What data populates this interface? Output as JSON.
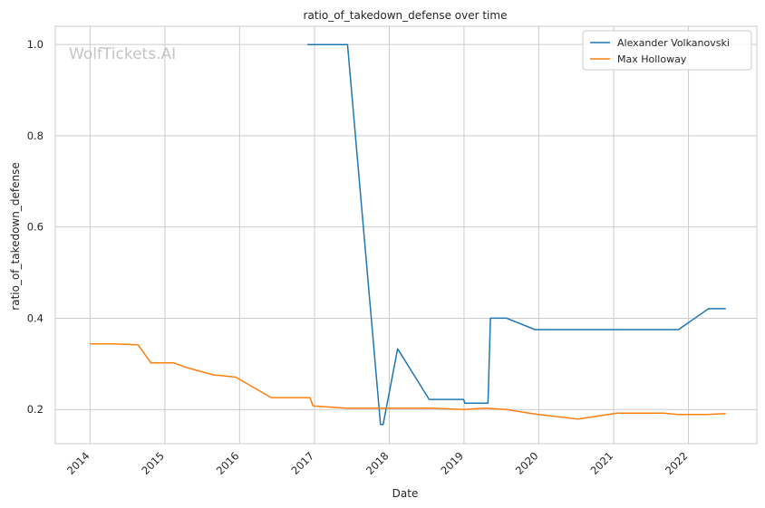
{
  "chart_data": {
    "type": "line",
    "title": "ratio_of_takedown_defense over time",
    "xlabel": "Date",
    "ylabel": "ratio_of_takedown_defense",
    "watermark": "WolfTickets.AI",
    "xlim": [
      "2013-07-15",
      "2022-12-01"
    ],
    "ylim": [
      0.125,
      1.04
    ],
    "grid": true,
    "legend_position": "top-right",
    "x_ticks": [
      "2014",
      "2015",
      "2016",
      "2017",
      "2018",
      "2019",
      "2020",
      "2021",
      "2022"
    ],
    "y_ticks": [
      "0.2",
      "0.4",
      "0.6",
      "0.8",
      "1.0"
    ],
    "series": [
      {
        "name": "Alexander Volkanovski",
        "color": "#1f77b4",
        "points": [
          [
            "2016-11-27",
            1.0
          ],
          [
            "2017-06-11",
            1.0
          ],
          [
            "2017-11-19",
            0.167
          ],
          [
            "2017-12-02",
            0.167
          ],
          [
            "2018-02-11",
            0.333
          ],
          [
            "2018-07-15",
            0.222
          ],
          [
            "2018-12-30",
            0.222
          ],
          [
            "2019-01-05",
            0.214
          ],
          [
            "2019-04-28",
            0.214
          ],
          [
            "2019-05-10",
            0.4
          ],
          [
            "2019-07-28",
            0.4
          ],
          [
            "2019-12-14",
            0.375
          ],
          [
            "2020-07-12",
            0.375
          ],
          [
            "2021-09-25",
            0.375
          ],
          [
            "2021-11-13",
            0.375
          ],
          [
            "2022-04-09",
            0.421
          ],
          [
            "2022-07-02",
            0.421
          ]
        ]
      },
      {
        "name": "Max Holloway",
        "color": "#ff7f0e",
        "points": [
          [
            "2014-01-01",
            0.344
          ],
          [
            "2014-04-16",
            0.344
          ],
          [
            "2014-08-23",
            0.342
          ],
          [
            "2014-10-25",
            0.302
          ],
          [
            "2015-02-14",
            0.302
          ],
          [
            "2015-04-18",
            0.292
          ],
          [
            "2015-08-23",
            0.276
          ],
          [
            "2015-12-12",
            0.271
          ],
          [
            "2016-06-04",
            0.226
          ],
          [
            "2016-12-10",
            0.226
          ],
          [
            "2016-12-25",
            0.208
          ],
          [
            "2017-06-03",
            0.203
          ],
          [
            "2018-01-01",
            0.203
          ],
          [
            "2018-07-28",
            0.203
          ],
          [
            "2018-12-29",
            0.2
          ],
          [
            "2019-04-13",
            0.203
          ],
          [
            "2019-07-27",
            0.2
          ],
          [
            "2019-12-14",
            0.19
          ],
          [
            "2020-07-12",
            0.179
          ],
          [
            "2021-01-16",
            0.192
          ],
          [
            "2021-09-01",
            0.192
          ],
          [
            "2021-11-13",
            0.189
          ],
          [
            "2022-04-02",
            0.189
          ],
          [
            "2022-07-02",
            0.191
          ]
        ]
      }
    ]
  }
}
